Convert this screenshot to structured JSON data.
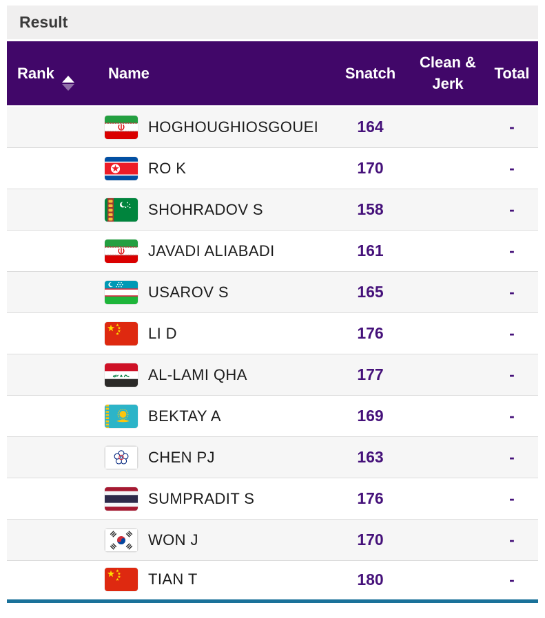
{
  "section": {
    "title": "Result"
  },
  "table": {
    "columns": {
      "rank": "Rank",
      "name": "Name",
      "snatch": "Snatch",
      "clean_jerk": "Clean & Jerk",
      "total": "Total"
    },
    "sort": {
      "column": "rank",
      "direction": "asc"
    },
    "rows": [
      {
        "rank": "",
        "noc": "IRI",
        "name": "HOGHOUGHIOSGOUEI",
        "snatch": "164",
        "clean_jerk": "",
        "total": "-"
      },
      {
        "rank": "",
        "noc": "PRK",
        "name": "RO K",
        "snatch": "170",
        "clean_jerk": "",
        "total": "-"
      },
      {
        "rank": "",
        "noc": "TKM",
        "name": "SHOHRADOV S",
        "snatch": "158",
        "clean_jerk": "",
        "total": "-"
      },
      {
        "rank": "",
        "noc": "IRI",
        "name": "JAVADI ALIABADI",
        "snatch": "161",
        "clean_jerk": "",
        "total": "-"
      },
      {
        "rank": "",
        "noc": "UZB",
        "name": "USAROV S",
        "snatch": "165",
        "clean_jerk": "",
        "total": "-"
      },
      {
        "rank": "",
        "noc": "CHN",
        "name": "LI D",
        "snatch": "176",
        "clean_jerk": "",
        "total": "-"
      },
      {
        "rank": "",
        "noc": "IRQ",
        "name": "AL-LAMI QHA",
        "snatch": "177",
        "clean_jerk": "",
        "total": "-"
      },
      {
        "rank": "",
        "noc": "KAZ",
        "name": "BEKTAY A",
        "snatch": "169",
        "clean_jerk": "",
        "total": "-"
      },
      {
        "rank": "",
        "noc": "TPE",
        "name": "CHEN PJ",
        "snatch": "163",
        "clean_jerk": "",
        "total": "-"
      },
      {
        "rank": "",
        "noc": "THA",
        "name": "SUMPRADIT S",
        "snatch": "176",
        "clean_jerk": "",
        "total": "-"
      },
      {
        "rank": "",
        "noc": "KOR",
        "name": "WON J",
        "snatch": "170",
        "clean_jerk": "",
        "total": "-"
      },
      {
        "rank": "",
        "noc": "CHN",
        "name": "TIAN T",
        "snatch": "180",
        "clean_jerk": "",
        "total": "-"
      }
    ]
  },
  "colors": {
    "header_background": "#410769",
    "header_text": "#ffffff",
    "value_text": "#45117a",
    "row_alt_background": "#f6f6f6",
    "section_bar_background": "#f0efef",
    "bottom_divider": "#1a7199"
  }
}
